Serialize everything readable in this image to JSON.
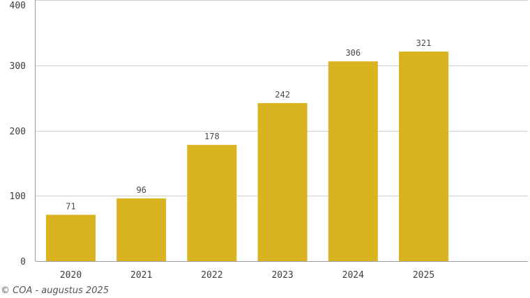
{
  "chart_data": {
    "type": "bar",
    "categories": [
      "2020",
      "2021",
      "2022",
      "2023",
      "2024",
      "2025"
    ],
    "values": [
      71,
      96,
      178,
      242,
      306,
      321
    ],
    "data_labels": [
      "71",
      "96",
      "178",
      "242",
      "306",
      "321"
    ],
    "title": "",
    "xlabel": "",
    "ylabel": "",
    "ylim": [
      0,
      400
    ],
    "yticks": [
      0,
      100,
      200,
      300,
      400
    ],
    "grid": "horizontal",
    "legend": "none",
    "bar_color": "#d9b320"
  },
  "footer": {
    "credit": "© COA - augustus 2025"
  }
}
